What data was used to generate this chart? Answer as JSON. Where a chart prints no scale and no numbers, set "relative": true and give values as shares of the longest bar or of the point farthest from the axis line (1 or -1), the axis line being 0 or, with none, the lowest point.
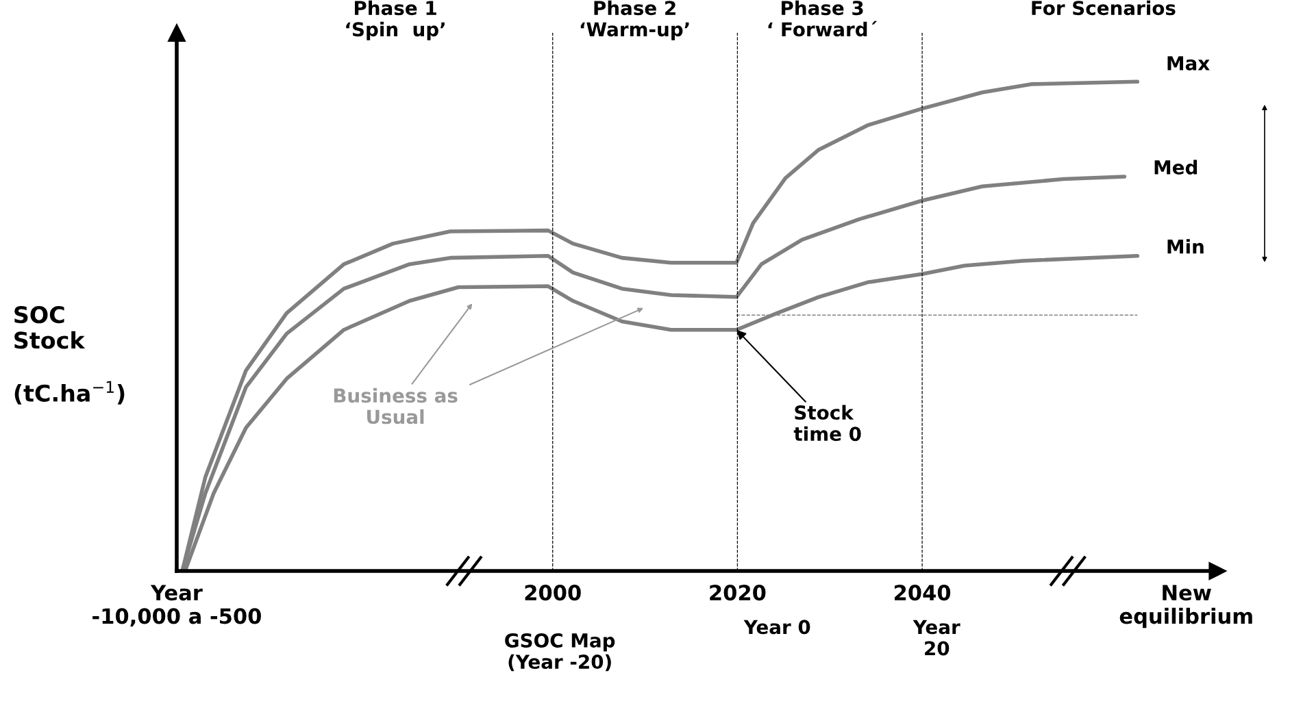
{
  "chart_data": {
    "type": "line",
    "relative": true,
    "ylabel": "SOC\nStock\n\n(tC.ha$^{−1}$)",
    "xlim": [
      1959.3,
      2072
    ],
    "xticks": [
      {
        "value": 1959.3,
        "label": "Year\n-10,000 a -500"
      },
      2000,
      2020,
      2040,
      {
        "value": 2068.6,
        "label": "New\nequilibrium"
      }
    ],
    "series": [
      {
        "name": "Max",
        "color": "#808080",
        "x": [
          1959.9,
          1962.4,
          1966.8,
          1971.2,
          1977.4,
          1982.7,
          1988.9,
          1999.5,
          2002.2,
          2007.5,
          2012.8,
          2019.9,
          2021.7,
          2025.2,
          2028.8,
          2034.1,
          2040,
          2046.5,
          2051.8,
          2063.3
        ],
        "values": [
          0,
          0.192,
          0.41,
          0.527,
          0.627,
          0.669,
          0.694,
          0.696,
          0.669,
          0.64,
          0.63,
          0.63,
          0.711,
          0.803,
          0.861,
          0.911,
          0.945,
          0.978,
          0.995,
          1.0
        ]
      },
      {
        "name": "Med",
        "color": "#808080",
        "x": [
          1959.9,
          1962.4,
          1966.8,
          1971.2,
          1977.4,
          1984.5,
          1988.9,
          1999.5,
          2002.2,
          2007.5,
          2012.8,
          2019.9,
          2022.6,
          2027,
          2033.2,
          2040,
          2046.5,
          2055.3,
          2061.9
        ],
        "values": [
          0,
          0.159,
          0.376,
          0.485,
          0.577,
          0.627,
          0.64,
          0.644,
          0.61,
          0.577,
          0.564,
          0.56,
          0.627,
          0.677,
          0.719,
          0.757,
          0.786,
          0.801,
          0.806
        ]
      },
      {
        "name": "Min",
        "color": "#808080",
        "x": [
          1960.2,
          1963.3,
          1966.8,
          1971.2,
          1977.4,
          1984.5,
          1989.8,
          1999.5,
          2002.2,
          2007.5,
          2012.8,
          2019.9,
          2024.3,
          2028.8,
          2034.1,
          2040,
          2044.6,
          2050.9,
          2063.3
        ],
        "values": [
          0,
          0.159,
          0.293,
          0.393,
          0.493,
          0.552,
          0.58,
          0.582,
          0.552,
          0.51,
          0.493,
          0.493,
          0.527,
          0.56,
          0.59,
          0.607,
          0.624,
          0.634,
          0.644
        ]
      },
      {
        "color": "#808080",
        "line_style": "dashed",
        "x": [
          2019.9,
          2063.3
        ],
        "values": [
          0.523,
          0.523
        ]
      }
    ],
    "ref_lines": [
      {
        "axis": "x",
        "value": 2000,
        "line_style": "dashed",
        "color": "#000000"
      },
      {
        "axis": "x",
        "value": 2020,
        "line_style": "dashed",
        "color": "#000000"
      },
      {
        "axis": "x",
        "value": 2040,
        "line_style": "dashed",
        "color": "#000000"
      }
    ],
    "annotations": [
      "Phase 1\n‘Spin  up’",
      "Phase 2\n‘Warm-up’",
      "Phase 3\n‘ Forward´",
      "For Scenarios",
      "GSOC Map\n(Year -20)",
      "Year 0",
      "Year\n20",
      "Business as\nUsual",
      {
        "text": "Stock\ntime 0",
        "x": 2019.9,
        "y": 0.493
      }
    ],
    "grid": false
  }
}
